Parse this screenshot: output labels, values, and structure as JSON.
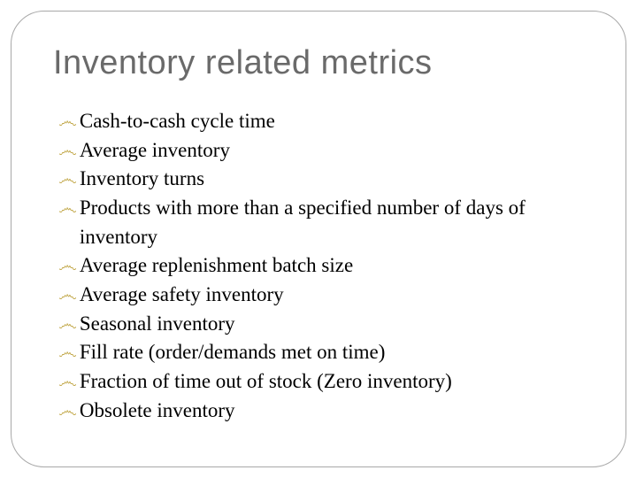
{
  "slide": {
    "title": "Inventory related metrics",
    "title_color": "#6a6a6a",
    "title_fontsize": 38,
    "title_fontfamily": "Arial",
    "bullet_icon": "་",
    "bullet_color": "#c2a84a",
    "body_color": "#000000",
    "body_fontsize": 23,
    "body_fontfamily": "Times New Roman",
    "frame_border_color": "#a8a8a8",
    "frame_border_radius": 38,
    "background_color": "#ffffff",
    "items": [
      {
        "text": "Cash-to-cash cycle time"
      },
      {
        "text": "Average inventory"
      },
      {
        "text": "Inventory turns"
      },
      {
        "text": "Products with more than a specified number of days of inventory"
      },
      {
        "text": "Average replenishment batch size"
      },
      {
        "text": "Average safety inventory"
      },
      {
        "text": "Seasonal inventory"
      },
      {
        "text": "Fill rate (order/demands met on time)"
      },
      {
        "text": "Fraction of time out of stock (Zero inventory)"
      },
      {
        "text": "Obsolete inventory"
      }
    ]
  }
}
